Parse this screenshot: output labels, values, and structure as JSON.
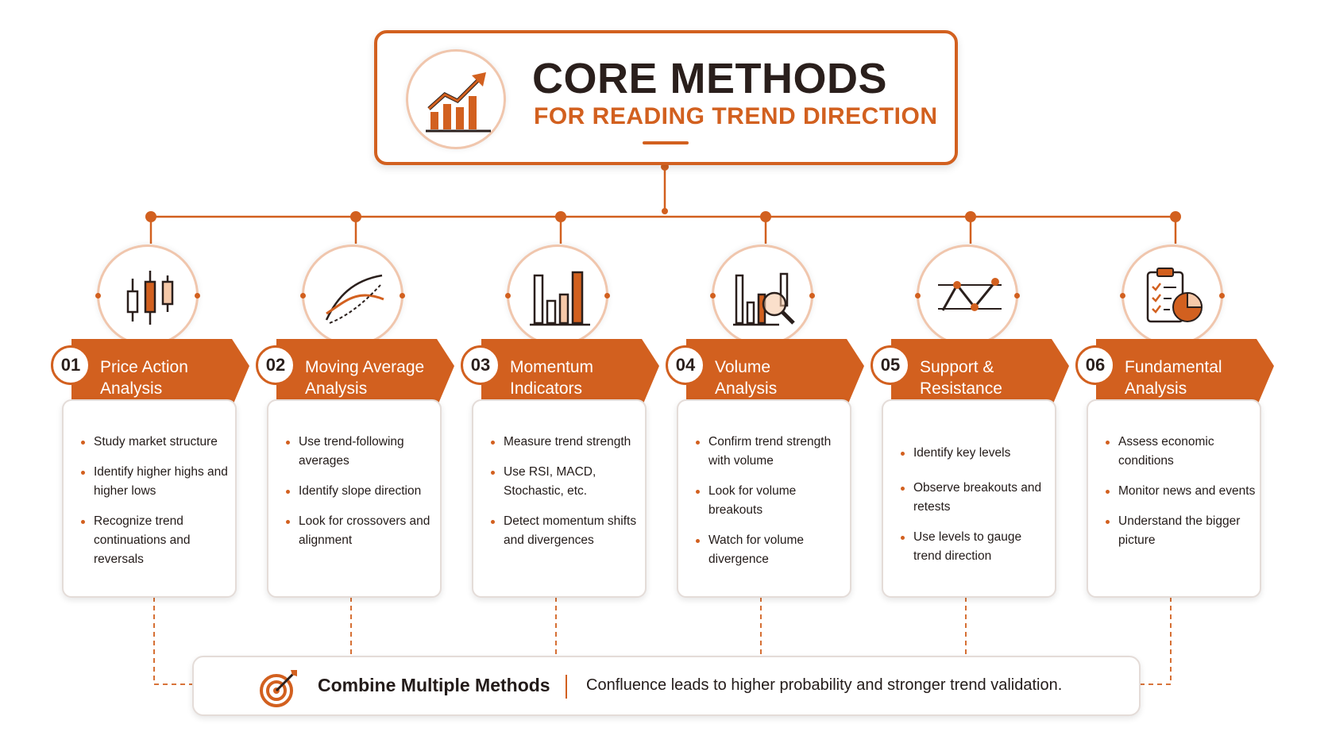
{
  "header": {
    "title": "CORE METHODS",
    "subtitle": "FOR READING TREND DIRECTION",
    "icon": "rising-bar-chart-icon"
  },
  "methods": [
    {
      "number": "01",
      "title_line1": "Price Action",
      "title_line2": "Analysis",
      "icon": "candlestick-icon",
      "bullets": [
        "Study market structure",
        "Identify higher highs and higher lows",
        "Recognize trend continuations and reversals"
      ]
    },
    {
      "number": "02",
      "title_line1": "Moving Average",
      "title_line2": "Analysis",
      "icon": "moving-average-curves-icon",
      "bullets": [
        "Use trend-following averages",
        "Identify slope direction",
        "Look for crossovers and alignment"
      ]
    },
    {
      "number": "03",
      "title_line1": "Momentum",
      "title_line2": "Indicators",
      "icon": "bar-chart-icon",
      "bullets": [
        "Measure trend strength",
        "Use RSI, MACD, Stochastic, etc.",
        "Detect momentum shifts and divergences"
      ]
    },
    {
      "number": "04",
      "title_line1": "Volume",
      "title_line2": "Analysis",
      "icon": "volume-magnifier-icon",
      "bullets": [
        "Confirm trend strength with volume",
        "Look for volume breakouts",
        "Watch for volume divergence"
      ]
    },
    {
      "number": "05",
      "title_line1": "Support &",
      "title_line2": "Resistance",
      "icon": "support-resistance-icon",
      "bullets": [
        "Identify key levels",
        "Observe breakouts and retests",
        "Use levels to gauge trend direction"
      ]
    },
    {
      "number": "06",
      "title_line1": "Fundamental",
      "title_line2": "Analysis",
      "icon": "clipboard-pie-icon",
      "bullets": [
        "Assess economic conditions",
        "Monitor news and events",
        "Understand the bigger picture"
      ]
    }
  ],
  "footer": {
    "title": "Combine Multiple Methods",
    "text": "Confluence leads to higher probability and stronger trend validation.",
    "icon": "target-icon"
  },
  "colors": {
    "accent": "#d2601f",
    "dark": "#2a1f1c",
    "light_accent": "#f0c6ad"
  }
}
